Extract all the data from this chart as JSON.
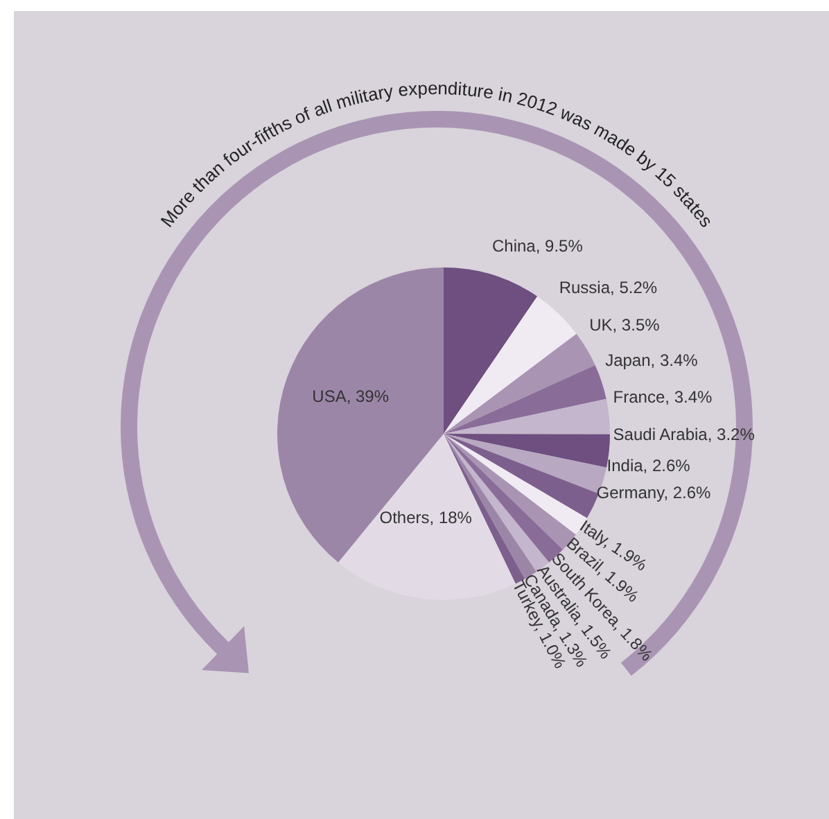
{
  "chart_data": {
    "type": "pie",
    "title": "More than four-fifths of all military expenditure in 2012 was made by 15 states",
    "categories": [
      "China",
      "Russia",
      "UK",
      "Japan",
      "France",
      "Saudi Arabia",
      "India",
      "Germany",
      "Italy",
      "Brazil",
      "South Korea",
      "Australia",
      "Canada",
      "Turkey",
      "Others",
      "USA"
    ],
    "values": [
      9.5,
      5.2,
      3.5,
      3.4,
      3.4,
      3.2,
      2.6,
      2.6,
      1.9,
      1.9,
      1.8,
      1.5,
      1.3,
      1.0,
      18,
      39
    ],
    "value_labels": [
      "9.5%",
      "5.2%",
      "3.5%",
      "3.4%",
      "3.4%",
      "3.2%",
      "2.6%",
      "2.6%",
      "1.9%",
      "1.9%",
      "1.8%",
      "1.5%",
      "1.3%",
      "1.0%",
      "18%",
      "39%"
    ],
    "colors": [
      "#6e4f80",
      "#f0ebf2",
      "#a995b3",
      "#8a6c99",
      "#c4b6cc",
      "#6e4f80",
      "#b8a8c2",
      "#7d5f8d",
      "#f0ebf2",
      "#a995b3",
      "#8a6c99",
      "#c4b6cc",
      "#9c86a8",
      "#7d5f8d",
      "#e2dbe6",
      "#9c86a8"
    ],
    "legend": false
  }
}
